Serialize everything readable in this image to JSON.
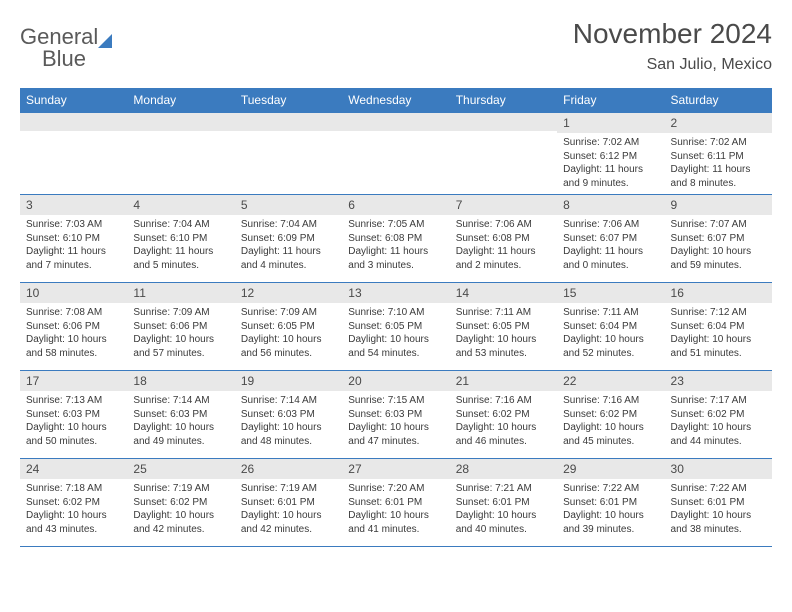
{
  "brand": {
    "word1": "General",
    "word2": "Blue"
  },
  "title": "November 2024",
  "location": "San Julio, Mexico",
  "colors": {
    "header_bg": "#3b7bbf",
    "header_text": "#ffffff",
    "daynum_bg": "#e8e8e8",
    "border": "#3b7bbf",
    "text": "#3a3a3a",
    "title": "#4a4a4a"
  },
  "weekdays": [
    "Sunday",
    "Monday",
    "Tuesday",
    "Wednesday",
    "Thursday",
    "Friday",
    "Saturday"
  ],
  "weeks": [
    [
      {
        "n": "",
        "lines": []
      },
      {
        "n": "",
        "lines": []
      },
      {
        "n": "",
        "lines": []
      },
      {
        "n": "",
        "lines": []
      },
      {
        "n": "",
        "lines": []
      },
      {
        "n": "1",
        "lines": [
          "Sunrise: 7:02 AM",
          "Sunset: 6:12 PM",
          "Daylight: 11 hours and 9 minutes."
        ]
      },
      {
        "n": "2",
        "lines": [
          "Sunrise: 7:02 AM",
          "Sunset: 6:11 PM",
          "Daylight: 11 hours and 8 minutes."
        ]
      }
    ],
    [
      {
        "n": "3",
        "lines": [
          "Sunrise: 7:03 AM",
          "Sunset: 6:10 PM",
          "Daylight: 11 hours and 7 minutes."
        ]
      },
      {
        "n": "4",
        "lines": [
          "Sunrise: 7:04 AM",
          "Sunset: 6:10 PM",
          "Daylight: 11 hours and 5 minutes."
        ]
      },
      {
        "n": "5",
        "lines": [
          "Sunrise: 7:04 AM",
          "Sunset: 6:09 PM",
          "Daylight: 11 hours and 4 minutes."
        ]
      },
      {
        "n": "6",
        "lines": [
          "Sunrise: 7:05 AM",
          "Sunset: 6:08 PM",
          "Daylight: 11 hours and 3 minutes."
        ]
      },
      {
        "n": "7",
        "lines": [
          "Sunrise: 7:06 AM",
          "Sunset: 6:08 PM",
          "Daylight: 11 hours and 2 minutes."
        ]
      },
      {
        "n": "8",
        "lines": [
          "Sunrise: 7:06 AM",
          "Sunset: 6:07 PM",
          "Daylight: 11 hours and 0 minutes."
        ]
      },
      {
        "n": "9",
        "lines": [
          "Sunrise: 7:07 AM",
          "Sunset: 6:07 PM",
          "Daylight: 10 hours and 59 minutes."
        ]
      }
    ],
    [
      {
        "n": "10",
        "lines": [
          "Sunrise: 7:08 AM",
          "Sunset: 6:06 PM",
          "Daylight: 10 hours and 58 minutes."
        ]
      },
      {
        "n": "11",
        "lines": [
          "Sunrise: 7:09 AM",
          "Sunset: 6:06 PM",
          "Daylight: 10 hours and 57 minutes."
        ]
      },
      {
        "n": "12",
        "lines": [
          "Sunrise: 7:09 AM",
          "Sunset: 6:05 PM",
          "Daylight: 10 hours and 56 minutes."
        ]
      },
      {
        "n": "13",
        "lines": [
          "Sunrise: 7:10 AM",
          "Sunset: 6:05 PM",
          "Daylight: 10 hours and 54 minutes."
        ]
      },
      {
        "n": "14",
        "lines": [
          "Sunrise: 7:11 AM",
          "Sunset: 6:05 PM",
          "Daylight: 10 hours and 53 minutes."
        ]
      },
      {
        "n": "15",
        "lines": [
          "Sunrise: 7:11 AM",
          "Sunset: 6:04 PM",
          "Daylight: 10 hours and 52 minutes."
        ]
      },
      {
        "n": "16",
        "lines": [
          "Sunrise: 7:12 AM",
          "Sunset: 6:04 PM",
          "Daylight: 10 hours and 51 minutes."
        ]
      }
    ],
    [
      {
        "n": "17",
        "lines": [
          "Sunrise: 7:13 AM",
          "Sunset: 6:03 PM",
          "Daylight: 10 hours and 50 minutes."
        ]
      },
      {
        "n": "18",
        "lines": [
          "Sunrise: 7:14 AM",
          "Sunset: 6:03 PM",
          "Daylight: 10 hours and 49 minutes."
        ]
      },
      {
        "n": "19",
        "lines": [
          "Sunrise: 7:14 AM",
          "Sunset: 6:03 PM",
          "Daylight: 10 hours and 48 minutes."
        ]
      },
      {
        "n": "20",
        "lines": [
          "Sunrise: 7:15 AM",
          "Sunset: 6:03 PM",
          "Daylight: 10 hours and 47 minutes."
        ]
      },
      {
        "n": "21",
        "lines": [
          "Sunrise: 7:16 AM",
          "Sunset: 6:02 PM",
          "Daylight: 10 hours and 46 minutes."
        ]
      },
      {
        "n": "22",
        "lines": [
          "Sunrise: 7:16 AM",
          "Sunset: 6:02 PM",
          "Daylight: 10 hours and 45 minutes."
        ]
      },
      {
        "n": "23",
        "lines": [
          "Sunrise: 7:17 AM",
          "Sunset: 6:02 PM",
          "Daylight: 10 hours and 44 minutes."
        ]
      }
    ],
    [
      {
        "n": "24",
        "lines": [
          "Sunrise: 7:18 AM",
          "Sunset: 6:02 PM",
          "Daylight: 10 hours and 43 minutes."
        ]
      },
      {
        "n": "25",
        "lines": [
          "Sunrise: 7:19 AM",
          "Sunset: 6:02 PM",
          "Daylight: 10 hours and 42 minutes."
        ]
      },
      {
        "n": "26",
        "lines": [
          "Sunrise: 7:19 AM",
          "Sunset: 6:01 PM",
          "Daylight: 10 hours and 42 minutes."
        ]
      },
      {
        "n": "27",
        "lines": [
          "Sunrise: 7:20 AM",
          "Sunset: 6:01 PM",
          "Daylight: 10 hours and 41 minutes."
        ]
      },
      {
        "n": "28",
        "lines": [
          "Sunrise: 7:21 AM",
          "Sunset: 6:01 PM",
          "Daylight: 10 hours and 40 minutes."
        ]
      },
      {
        "n": "29",
        "lines": [
          "Sunrise: 7:22 AM",
          "Sunset: 6:01 PM",
          "Daylight: 10 hours and 39 minutes."
        ]
      },
      {
        "n": "30",
        "lines": [
          "Sunrise: 7:22 AM",
          "Sunset: 6:01 PM",
          "Daylight: 10 hours and 38 minutes."
        ]
      }
    ]
  ]
}
